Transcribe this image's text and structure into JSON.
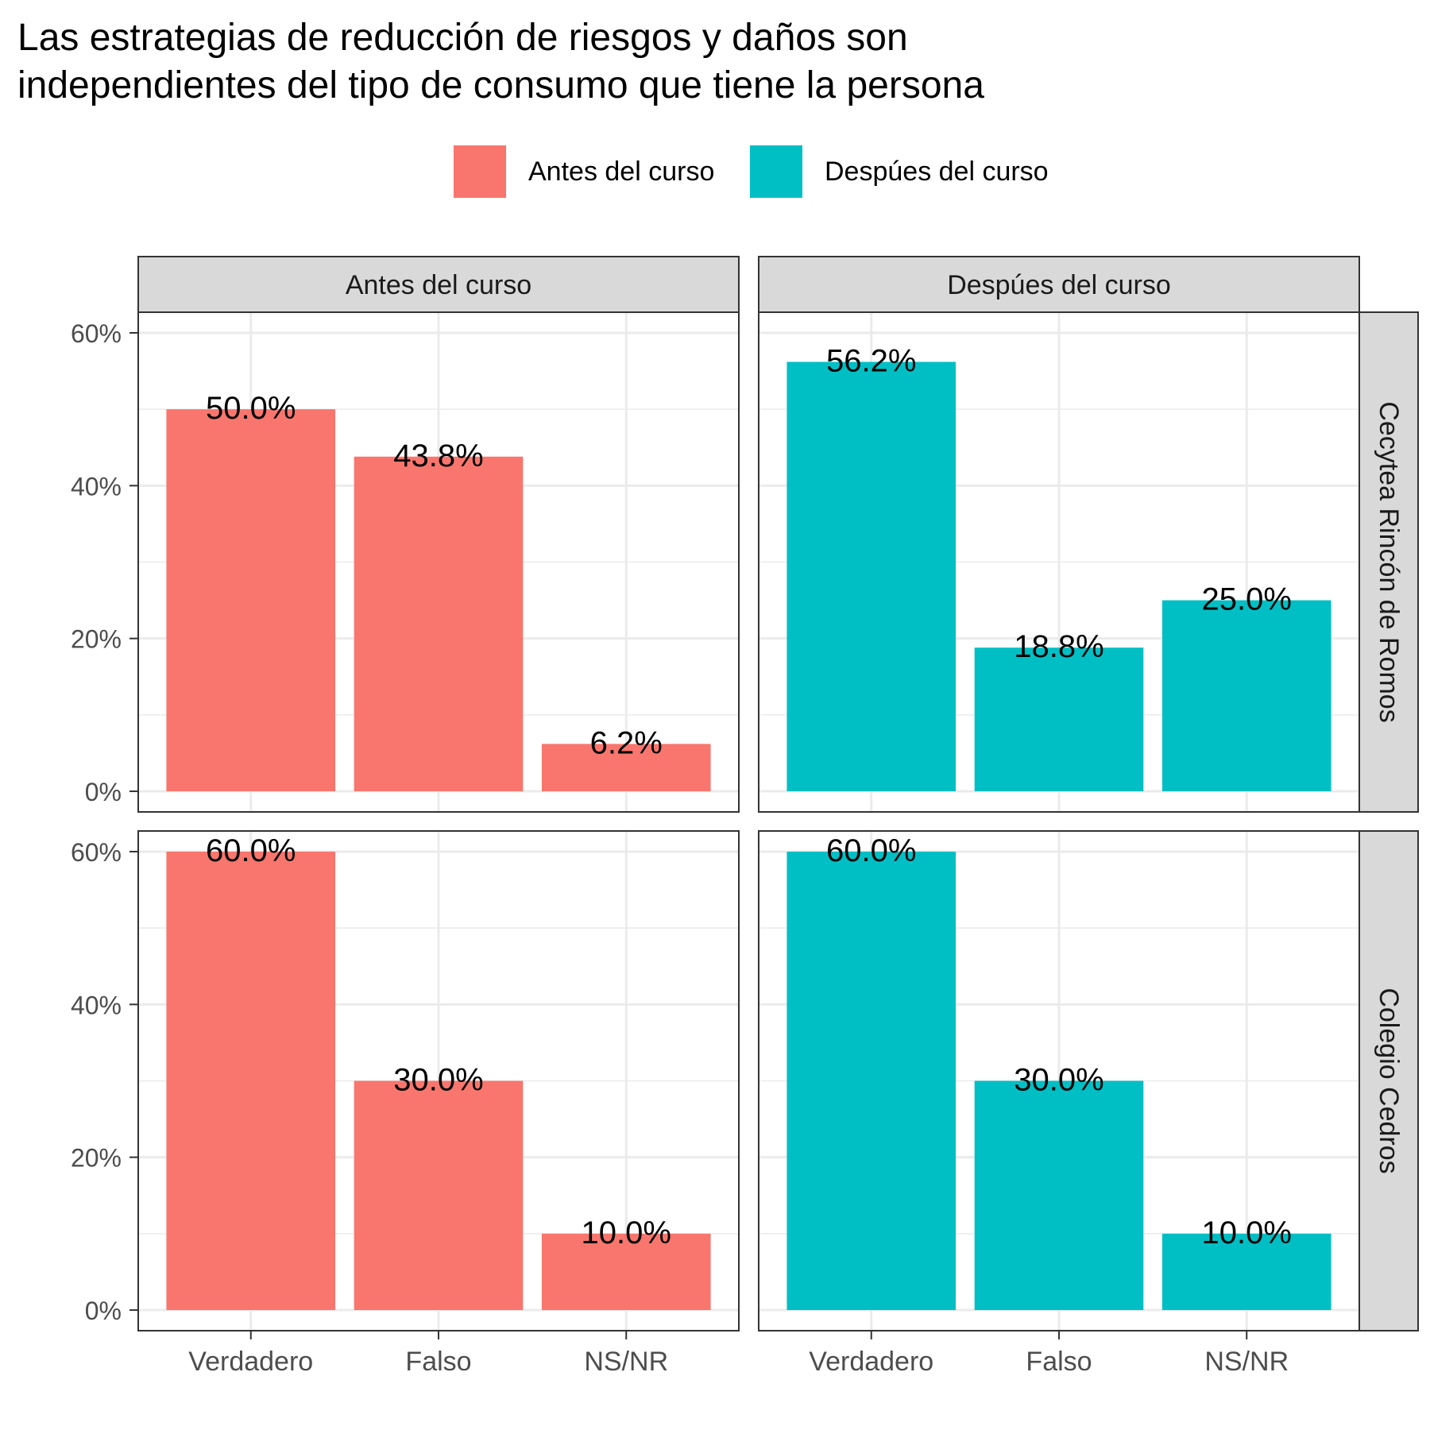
{
  "chart_data": {
    "type": "bar",
    "title_lines": [
      "Las estrategias de reducción de riesgos y daños son",
      "independientes del tipo de consumo que tiene la persona"
    ],
    "xlabel": "",
    "ylabel": "",
    "categories": [
      "Verdadero",
      "Falso",
      "NS/NR"
    ],
    "ylim": [
      0,
      0.6
    ],
    "y_ticks": [
      0,
      0.2,
      0.4,
      0.6
    ],
    "y_tick_labels": [
      "0%",
      "20%",
      "40%",
      "60%"
    ],
    "grid": true,
    "legend_position": "top",
    "legend": [
      {
        "label": "Antes del curso",
        "color": "#F8766D"
      },
      {
        "label": "Despúes del curso",
        "color": "#00BFC4"
      }
    ],
    "column_facets": [
      {
        "label": "Antes del curso",
        "color": "#F8766D"
      },
      {
        "label": "Despúes del curso",
        "color": "#00BFC4"
      }
    ],
    "row_facets": [
      {
        "label": "Cecytea Rincón de Romos",
        "series": [
          {
            "name": "Antes del curso",
            "values": [
              0.5,
              0.438,
              0.062
            ],
            "labels": [
              "50.0%",
              "43.8%",
              "6.2%"
            ]
          },
          {
            "name": "Despúes del curso",
            "values": [
              0.562,
              0.188,
              0.25
            ],
            "labels": [
              "56.2%",
              "18.8%",
              "25.0%"
            ]
          }
        ]
      },
      {
        "label": "Colegio Cedros",
        "series": [
          {
            "name": "Antes del curso",
            "values": [
              0.6,
              0.3,
              0.1
            ],
            "labels": [
              "60.0%",
              "30.0%",
              "10.0%"
            ]
          },
          {
            "name": "Despúes del curso",
            "values": [
              0.6,
              0.3,
              0.1
            ],
            "labels": [
              "60.0%",
              "30.0%",
              "10.0%"
            ]
          }
        ]
      }
    ]
  }
}
